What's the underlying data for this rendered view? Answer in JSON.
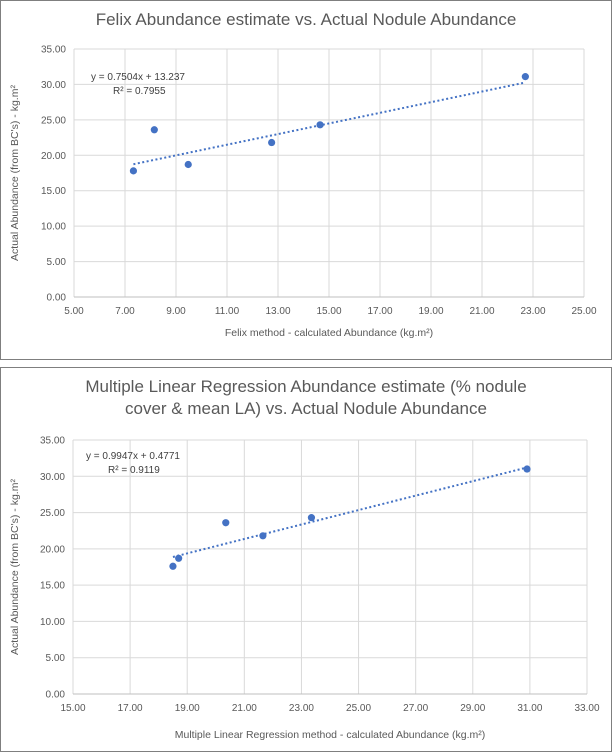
{
  "chart_data": [
    {
      "type": "scatter",
      "title": "Felix Abundance estimate vs. Actual Nodule Abundance",
      "xlabel": "Felix method - calculated Abundance (kg.m²)",
      "ylabel": "Actual Abundance (from BC's) - kg.m²",
      "xlim": [
        5,
        25
      ],
      "ylim": [
        0,
        35
      ],
      "xticks": [
        "5.00",
        "7.00",
        "9.00",
        "11.00",
        "13.00",
        "15.00",
        "17.00",
        "19.00",
        "21.00",
        "23.00",
        "25.00"
      ],
      "yticks": [
        "0.00",
        "5.00",
        "10.00",
        "15.00",
        "20.00",
        "25.00",
        "30.00",
        "35.00"
      ],
      "grid": true,
      "points": [
        [
          7.33,
          17.8
        ],
        [
          8.15,
          23.6
        ],
        [
          9.48,
          18.7
        ],
        [
          12.75,
          21.8
        ],
        [
          14.65,
          24.3
        ],
        [
          22.7,
          31.1
        ]
      ],
      "trendline": {
        "slope": 0.7504,
        "intercept": 13.237,
        "equation": "y = 0.7504x + 13.237",
        "r2": "R² = 0.7955"
      },
      "color": "#4472c4"
    },
    {
      "type": "scatter",
      "title_lines": [
        "Multiple Linear Regression Abundance estimate (% nodule",
        "cover & mean LA) vs. Actual Nodule Abundance"
      ],
      "xlabel": "Multiple Linear Regression  method - calculated Abundance (kg.m²)",
      "ylabel": "Actual Abundance (from BC's) - kg.m²",
      "xlim": [
        15,
        33
      ],
      "ylim": [
        0,
        35
      ],
      "xticks": [
        "15.00",
        "17.00",
        "19.00",
        "21.00",
        "23.00",
        "25.00",
        "27.00",
        "29.00",
        "31.00",
        "33.00"
      ],
      "yticks": [
        "0.00",
        "5.00",
        "10.00",
        "15.00",
        "20.00",
        "25.00",
        "30.00",
        "35.00"
      ],
      "grid": true,
      "points": [
        [
          18.5,
          17.6
        ],
        [
          18.7,
          18.7
        ],
        [
          20.35,
          23.6
        ],
        [
          21.65,
          21.8
        ],
        [
          23.35,
          24.3
        ],
        [
          30.9,
          31.0
        ]
      ],
      "trendline": {
        "slope": 0.9947,
        "intercept": 0.4771,
        "equation": "y = 0.9947x + 0.4771",
        "r2": "R² = 0.9119"
      },
      "color": "#4472c4"
    }
  ]
}
